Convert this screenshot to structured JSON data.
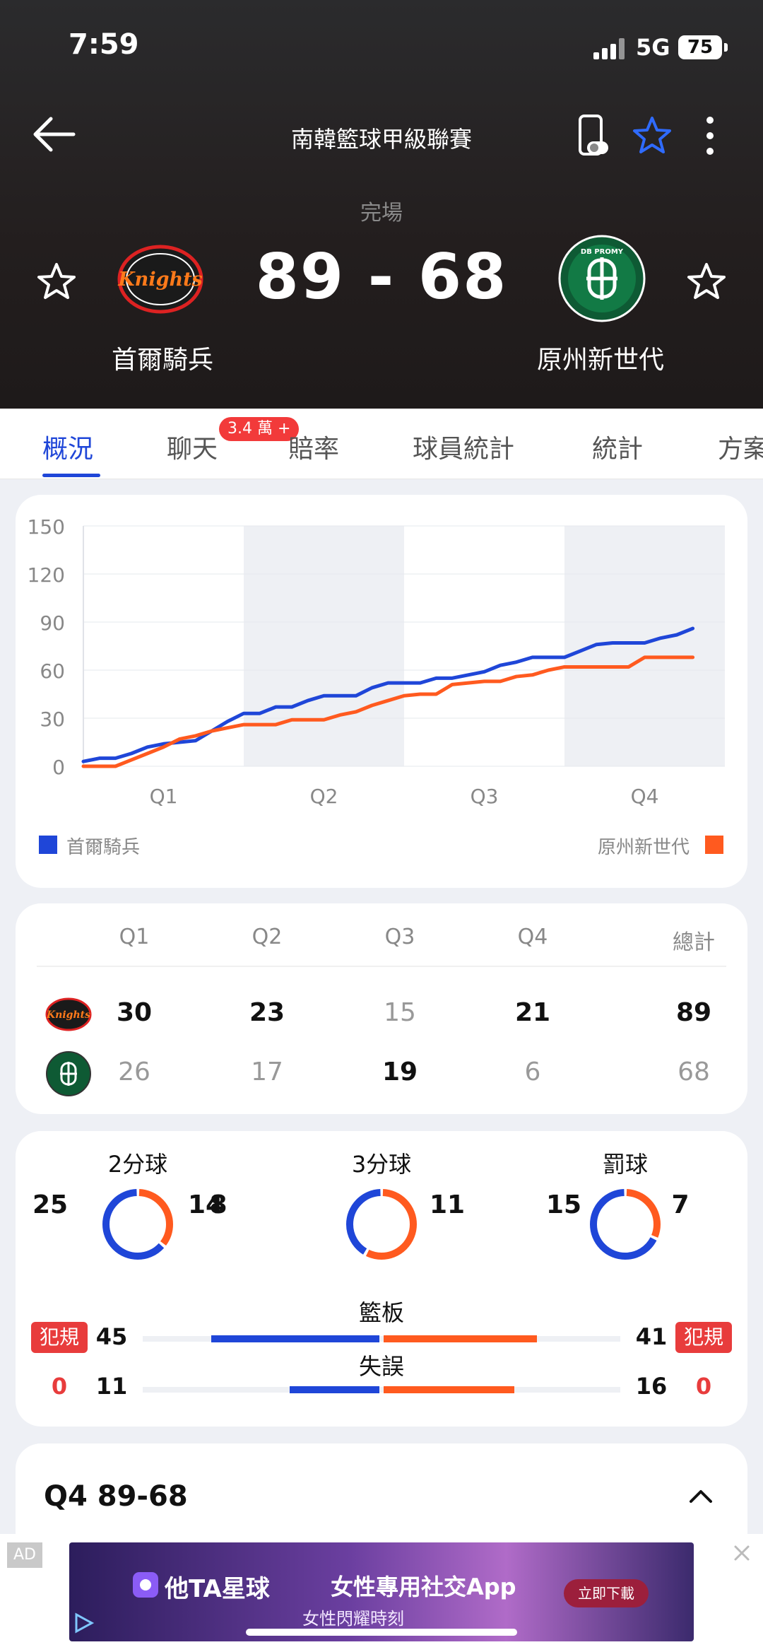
{
  "status_bar": {
    "time": "7:59",
    "network": "5G",
    "battery": "75"
  },
  "header": {
    "league": "南韓籃球甲級聯賽",
    "status": "完場",
    "score": "89 - 68",
    "home_team": "首爾騎兵",
    "away_team": "原州新世代",
    "home_logo_text": "Knights",
    "away_logo_text": "DB PROMY"
  },
  "tabs": [
    {
      "label": "概況",
      "active": true
    },
    {
      "label": "聊天",
      "badge": "3.4 萬 +"
    },
    {
      "label": "賠率"
    },
    {
      "label": "球員統計"
    },
    {
      "label": "統計"
    },
    {
      "label": "方案"
    }
  ],
  "chart_data": {
    "type": "line",
    "x_categories": [
      "Q1",
      "Q2",
      "Q3",
      "Q4"
    ],
    "y_ticks": [
      0,
      30,
      60,
      90,
      120,
      150
    ],
    "ylim": [
      0,
      150
    ],
    "series": [
      {
        "name": "首爾騎兵",
        "color": "#1f46d8",
        "x": [
          0,
          0.1,
          0.2,
          0.3,
          0.4,
          0.5,
          0.6,
          0.7,
          0.8,
          0.9,
          1.0,
          1.1,
          1.2,
          1.3,
          1.4,
          1.5,
          1.6,
          1.7,
          1.8,
          1.9,
          2.0,
          2.1,
          2.2,
          2.3,
          2.4,
          2.5,
          2.6,
          2.7,
          2.8,
          2.9,
          3.0,
          3.1,
          3.2,
          3.3,
          3.4,
          3.5,
          3.6,
          3.7,
          3.8
        ],
        "y": [
          3,
          5,
          5,
          8,
          12,
          14,
          15,
          16,
          22,
          28,
          33,
          33,
          37,
          37,
          41,
          44,
          44,
          44,
          49,
          52,
          52,
          52,
          55,
          55,
          57,
          59,
          63,
          65,
          68,
          68,
          68,
          72,
          76,
          77,
          77,
          77,
          80,
          82,
          86
        ]
      },
      {
        "name": "原州新世代",
        "color": "#ff5a1f",
        "x": [
          0,
          0.1,
          0.2,
          0.3,
          0.4,
          0.5,
          0.6,
          0.7,
          0.8,
          0.9,
          1.0,
          1.1,
          1.2,
          1.3,
          1.4,
          1.5,
          1.6,
          1.7,
          1.8,
          1.9,
          2.0,
          2.1,
          2.2,
          2.3,
          2.4,
          2.5,
          2.6,
          2.7,
          2.8,
          2.9,
          3.0,
          3.1,
          3.2,
          3.3,
          3.4,
          3.5,
          3.6,
          3.7,
          3.8
        ],
        "y": [
          0,
          0,
          0,
          4,
          8,
          12,
          17,
          19,
          22,
          24,
          26,
          26,
          26,
          29,
          29,
          29,
          32,
          34,
          38,
          41,
          44,
          45,
          45,
          51,
          52,
          53,
          53,
          56,
          57,
          60,
          62,
          62,
          62,
          62,
          62,
          68,
          68,
          68,
          68
        ]
      }
    ]
  },
  "score_table": {
    "headers": [
      "Q1",
      "Q2",
      "Q3",
      "Q4",
      "總計"
    ],
    "home": {
      "scores": [
        "30",
        "23",
        "15",
        "21",
        "89"
      ],
      "dim": [
        false,
        false,
        true,
        false,
        false
      ]
    },
    "away": {
      "scores": [
        "26",
        "17",
        "19",
        "6",
        "68"
      ],
      "dim": [
        true,
        true,
        false,
        true,
        true
      ]
    }
  },
  "stats": {
    "two_pt": {
      "label": "2分球",
      "home": "25",
      "away": "14",
      "home_value": 25,
      "away_value": 14
    },
    "three_pt": {
      "label": "3分球",
      "home": "8",
      "away": "11",
      "home_value": 8,
      "away_value": 11
    },
    "free_throw": {
      "label": "罰球",
      "home": "15",
      "away": "7",
      "home_value": 15,
      "away_value": 7
    },
    "rebounds": {
      "label": "籃板",
      "home": "45",
      "away": "41",
      "home_value": 45,
      "away_value": 41
    },
    "turnovers": {
      "label": "失誤",
      "home": "11",
      "away": "16",
      "home_value": 11,
      "away_value": 16
    },
    "foul_label": "犯規",
    "home_fouls_extra": "0",
    "away_fouls_extra": "0",
    "home_color": "#1f46d8",
    "away_color": "#ff5a1f"
  },
  "quarter_section": {
    "title": "Q4 89-68"
  },
  "ad": {
    "tag": "AD",
    "brand": "他TA星球",
    "tagline": "女性專用社交App",
    "sub": "女性閃耀時刻",
    "cta": "立即下載"
  }
}
